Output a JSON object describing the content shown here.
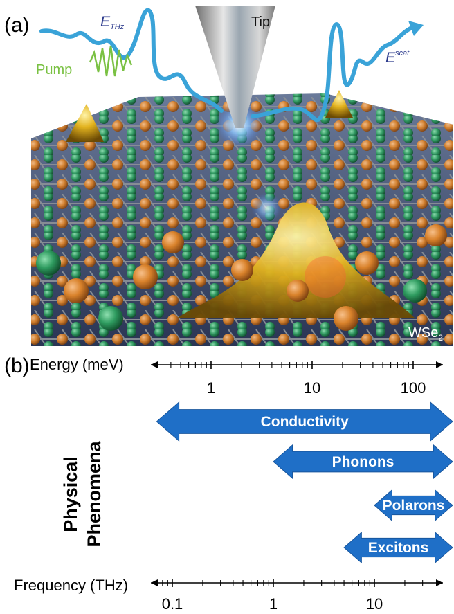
{
  "panel_a": {
    "label": "(a)",
    "labels": {
      "pump": "Pump",
      "e_thz_main": "E",
      "e_thz_sub": "THz",
      "tip": "Tip",
      "e_scat_main": "E",
      "e_scat_sup": "scat",
      "material_main": "WSe",
      "material_sub": "2"
    },
    "colors": {
      "pump": "#7ac143",
      "beam": "#3aa3d8",
      "field_text": "#2b3a8c",
      "atom_orange": "#d9822b",
      "atom_green": "#2e9b5f",
      "gold": "#e2b21e"
    }
  },
  "panel_b": {
    "label": "(b)",
    "energy_axis": {
      "title": "Energy (meV)",
      "scale": "log",
      "major_ticks": [
        "1",
        "10",
        "100"
      ]
    },
    "frequency_axis": {
      "title": "Frequency (THz)",
      "scale": "log",
      "major_ticks": [
        "0.1",
        "1",
        "10"
      ]
    },
    "vertical_label_line1": "Physical",
    "vertical_label_line2": "Phenomena",
    "arrow_color": "#1f6fc7",
    "phenomena": [
      {
        "name": "Conductivity",
        "from_thz": 0.07,
        "to_thz": 60
      },
      {
        "name": "Phonons",
        "from_thz": 1.0,
        "to_thz": 60
      },
      {
        "name": "Polarons",
        "from_thz": 10,
        "to_thz": 60
      },
      {
        "name": "Excitons",
        "from_thz": 5,
        "to_thz": 60
      }
    ]
  }
}
